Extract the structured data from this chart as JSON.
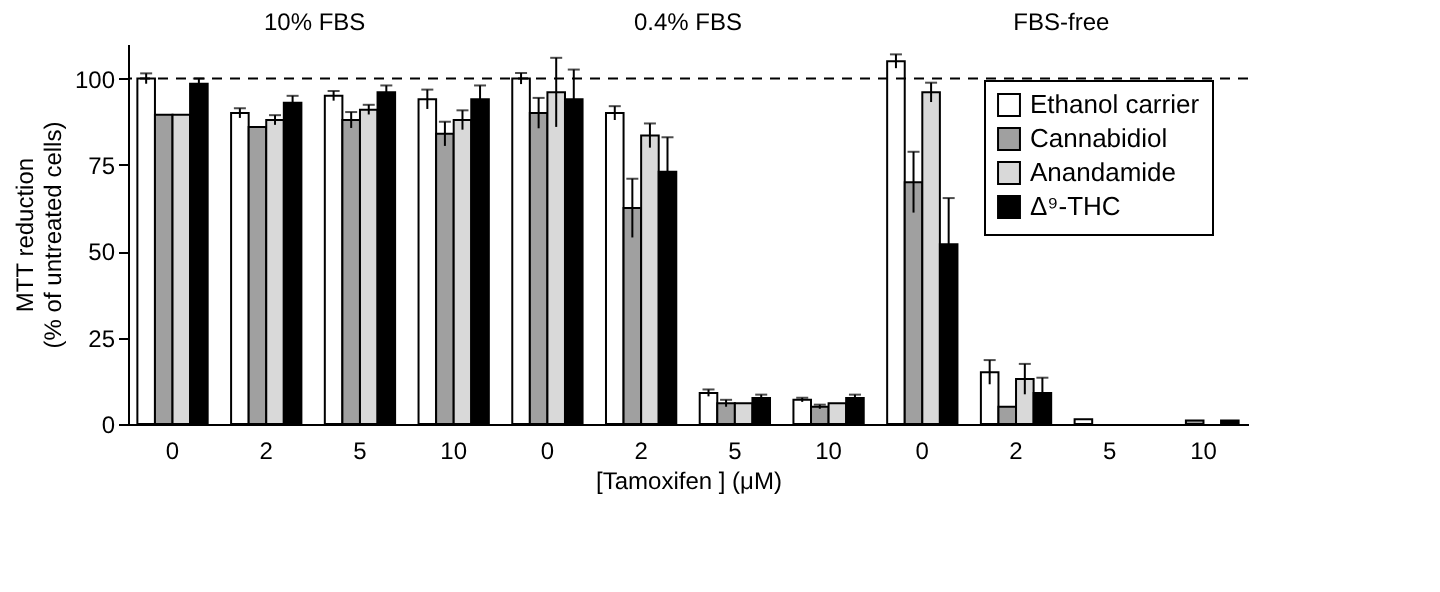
{
  "chart_data": {
    "type": "bar",
    "xlabel": "[Tamoxifen ] (μM)",
    "ylabel": "MTT reduction\n(% of untreated cells)",
    "categories": [
      "0",
      "2",
      "5",
      "10",
      "0",
      "2",
      "5",
      "10",
      "0",
      "2",
      "5",
      "10"
    ],
    "series": [
      {
        "name": "Ethanol carrier",
        "color": "#ffffff",
        "values": [
          100,
          90,
          95,
          94,
          100,
          90,
          9,
          7,
          105,
          15,
          1.4,
          null
        ],
        "errors": [
          1.5,
          1.4,
          1.4,
          2.8,
          1.6,
          2,
          1,
          0.6,
          2,
          3.5,
          null,
          null
        ]
      },
      {
        "name": "Cannabidiol",
        "color": "#a0a0a0",
        "values": [
          89.5,
          86,
          88,
          84,
          90,
          62.5,
          6,
          5,
          70,
          5,
          null,
          1
        ],
        "errors": [
          null,
          null,
          2.3,
          3.5,
          4.4,
          8.5,
          1,
          0.6,
          8.8,
          null,
          null,
          null
        ]
      },
      {
        "name": "Anandamide",
        "color": "#d9d9d9",
        "values": [
          89.5,
          88,
          91,
          88,
          96,
          83.5,
          6,
          6,
          96,
          13,
          null,
          null
        ],
        "errors": [
          null,
          1.4,
          1.4,
          2.8,
          10,
          3.5,
          null,
          null,
          2.8,
          4.4,
          null,
          null
        ]
      },
      {
        "name": "Δ⁹-THC",
        "color": "#000000",
        "values": [
          98.5,
          93,
          96,
          94,
          94,
          73,
          7.5,
          7.5,
          52,
          9,
          null,
          1
        ],
        "errors": [
          1.5,
          2,
          2,
          4,
          8.6,
          10,
          1,
          1,
          13.4,
          4.4,
          null,
          null
        ]
      }
    ],
    "ylim": [
      0,
      110
    ],
    "yticks": [
      0,
      25,
      50,
      75,
      100
    ],
    "grid": false,
    "legend": "top right",
    "ref_lines": [
      {
        "axis": "y",
        "value": 100,
        "line_style": "dashed",
        "color": "#000000"
      }
    ],
    "annotations": [
      "10% FBS",
      "0.4% FBS",
      "FBS-free"
    ]
  }
}
